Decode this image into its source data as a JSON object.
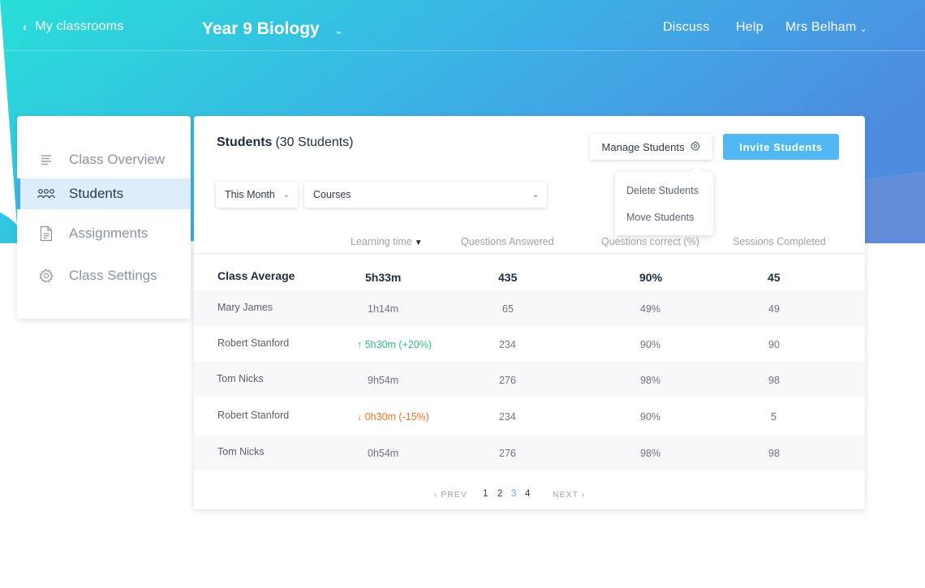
{
  "header": {
    "back_label": "My classrooms",
    "course_title": "Year 9 Biology",
    "nav": {
      "discuss": "Discuss",
      "help": "Help",
      "user": "Mrs Belham"
    },
    "gradient_start": "#27dfd9",
    "gradient_end": "#4d8de0"
  },
  "sidebar": {
    "items": [
      {
        "label": "Class Overview",
        "icon": "list-icon",
        "active": false
      },
      {
        "label": "Students",
        "icon": "students-icon",
        "active": true
      },
      {
        "label": "Assignments",
        "icon": "document-icon",
        "active": false
      },
      {
        "label": "Class Settings",
        "icon": "gear-icon",
        "active": false
      }
    ],
    "accent": "#4ba6ea"
  },
  "students_panel": {
    "title": "Students",
    "count": "(30 Students)",
    "manage_button": "Manage Students",
    "invite_button": "Invite Students",
    "manage_menu": [
      "Delete Students",
      "Move Students"
    ],
    "filters": {
      "period": "This Month",
      "courses": "Courses"
    },
    "columns": [
      "Learning time",
      "Questions Answered",
      "Questions correct (%)",
      "Sessions Completed"
    ],
    "sorted_column": "Learning time",
    "class_average": {
      "label": "Class Average",
      "learning_time": "5h33m",
      "answered": "435",
      "correct": "90%",
      "sessions": "45"
    },
    "rows": [
      {
        "name": "Mary James",
        "learning_time": "1h14m",
        "trend": "",
        "answered": "65",
        "correct": "49%",
        "sessions": "49"
      },
      {
        "name": "Robert Stanford",
        "learning_time": "↑ 5h30m  (+20%)",
        "trend": "up",
        "answered": "234",
        "correct": "90%",
        "sessions": "90"
      },
      {
        "name": "Tom Nicks",
        "learning_time": "9h54m",
        "trend": "",
        "answered": "276",
        "correct": "98%",
        "sessions": "98"
      },
      {
        "name": "Robert Stanford",
        "learning_time": "↓ 0h30m  (-15%)",
        "trend": "down",
        "answered": "234",
        "correct": "90%",
        "sessions": "5"
      },
      {
        "name": "Tom Nicks",
        "learning_time": "0h54m",
        "trend": "",
        "answered": "276",
        "correct": "98%",
        "sessions": "98"
      }
    ],
    "colors": {
      "trend_up": "#2dba8a",
      "trend_down": "#f0721e",
      "invite": "#4fb8f2"
    }
  },
  "pagination": {
    "prev": "‹ PREV",
    "pages": [
      "1",
      "2",
      "3",
      "4"
    ],
    "current_page": "3",
    "next": "NEXT ›"
  }
}
